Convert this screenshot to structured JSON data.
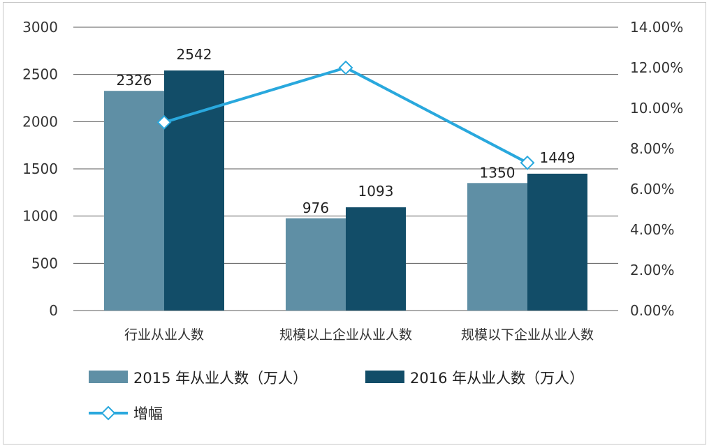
{
  "colors": {
    "series_2015": "#5f8fa5",
    "series_2016": "#124d68",
    "line": "#29a8dd",
    "grid": "#5a5a5a",
    "text": "#333333"
  },
  "chart_data": {
    "type": "bar",
    "title": "",
    "categories": [
      "行业从业人数",
      "规模以上企业从业人数",
      "规模以下企业从业人数"
    ],
    "series": [
      {
        "name": "2015 年从业人数（万人）",
        "type": "bar",
        "axis": "left",
        "values": [
          2326,
          976,
          1350
        ],
        "labels": [
          "2326",
          "976",
          "1350"
        ]
      },
      {
        "name": "2016 年从业人数（万人）",
        "type": "bar",
        "axis": "left",
        "values": [
          2542,
          1093,
          1449
        ],
        "labels": [
          "2542",
          "1093",
          "1449"
        ]
      },
      {
        "name": "增幅",
        "type": "line",
        "axis": "right",
        "marker": "diamond",
        "values": [
          9.3,
          12.0,
          7.3
        ]
      }
    ],
    "ylim": [
      0,
      3000
    ],
    "y_ticks": [
      "0",
      "500",
      "1000",
      "1500",
      "2000",
      "2500",
      "3000"
    ],
    "y2lim": [
      0,
      14
    ],
    "y2_ticks": [
      "0.00%",
      "2.00%",
      "4.00%",
      "6.00%",
      "8.00%",
      "10.00%",
      "12.00%",
      "14.00%"
    ],
    "grid": true,
    "legend_position": "bottom"
  }
}
